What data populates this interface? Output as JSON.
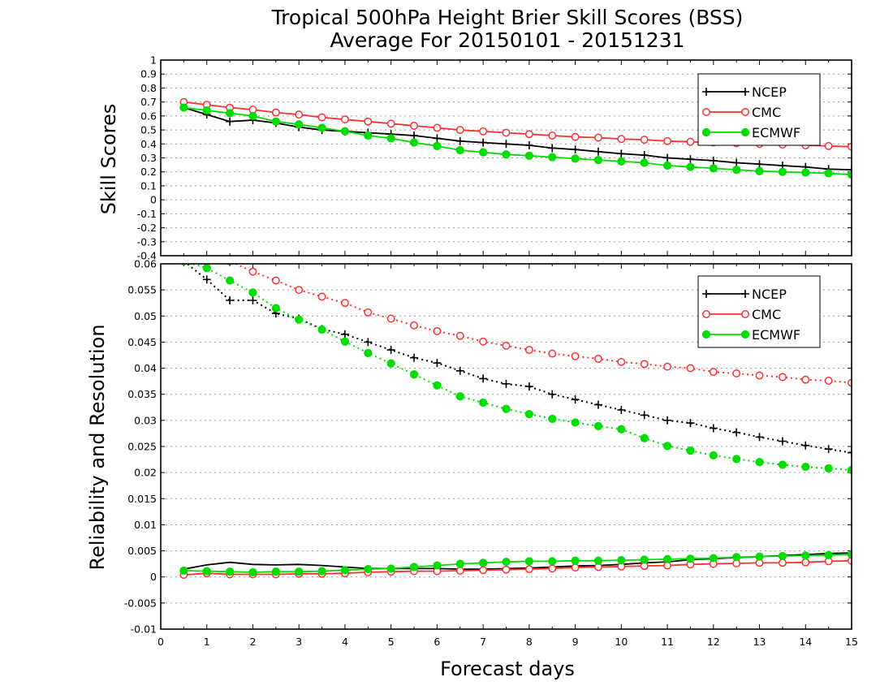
{
  "page": {
    "title_line1": "Tropical 500hPa Height Brier Skill Scores (BSS)",
    "title_line2": "Average For 20150101 - 20151231",
    "xlabel": "Forecast days"
  },
  "colors": {
    "NCEP": "#000000",
    "CMC": "#ff3030",
    "ECMWF": "#00dd00",
    "grid": "#9a9a9a"
  },
  "chart_data": [
    {
      "type": "line",
      "ylabel": "Skill Scores",
      "xlim": [
        0,
        15
      ],
      "ylim": [
        -0.4,
        1
      ],
      "x_ticks": [
        0,
        1,
        2,
        3,
        4,
        5,
        6,
        7,
        8,
        9,
        10,
        11,
        12,
        13,
        14,
        15
      ],
      "y_ticks": [
        -0.4,
        -0.3,
        -0.2,
        -0.1,
        0,
        0.1,
        0.2,
        0.3,
        0.4,
        0.5,
        0.6,
        0.7,
        0.8,
        0.9,
        1
      ],
      "y_tick_labels": [
        "-0.4",
        "-0.3",
        "-0.2",
        "-0.1",
        "0",
        "0.1",
        "0.2",
        "0.3",
        "0.4",
        "0.5",
        "0.6",
        "0.7",
        "0.8",
        "0.9",
        "1"
      ],
      "grid": "horizontal dotted",
      "legend_position": "top-right",
      "x": [
        0.5,
        1,
        1.5,
        2,
        2.5,
        3,
        3.5,
        4,
        4.5,
        5,
        5.5,
        6,
        6.5,
        7,
        7.5,
        8,
        8.5,
        9,
        9.5,
        10,
        10.5,
        11,
        11.5,
        12,
        12.5,
        13,
        13.5,
        14,
        14.5,
        15
      ],
      "series": [
        {
          "name": "NCEP",
          "marker": "plus",
          "line": "solid",
          "values": [
            0.66,
            0.61,
            0.56,
            0.57,
            0.55,
            0.52,
            0.5,
            0.49,
            0.48,
            0.47,
            0.46,
            0.44,
            0.42,
            0.41,
            0.4,
            0.39,
            0.37,
            0.36,
            0.345,
            0.33,
            0.32,
            0.3,
            0.29,
            0.28,
            0.265,
            0.255,
            0.245,
            0.235,
            0.22,
            0.215
          ]
        },
        {
          "name": "CMC",
          "marker": "open-circle",
          "line": "solid",
          "values": [
            0.7,
            0.68,
            0.66,
            0.645,
            0.625,
            0.61,
            0.59,
            0.575,
            0.56,
            0.545,
            0.53,
            0.515,
            0.5,
            0.49,
            0.48,
            0.47,
            0.46,
            0.45,
            0.445,
            0.435,
            0.43,
            0.42,
            0.415,
            0.41,
            0.405,
            0.4,
            0.395,
            0.39,
            0.385,
            0.38
          ]
        },
        {
          "name": "ECMWF",
          "marker": "filled-circle",
          "line": "solid",
          "values": [
            0.66,
            0.64,
            0.62,
            0.6,
            0.56,
            0.54,
            0.515,
            0.49,
            0.46,
            0.44,
            0.41,
            0.385,
            0.355,
            0.34,
            0.325,
            0.315,
            0.305,
            0.295,
            0.285,
            0.275,
            0.265,
            0.245,
            0.235,
            0.225,
            0.215,
            0.205,
            0.2,
            0.195,
            0.19,
            0.18
          ]
        }
      ]
    },
    {
      "type": "line",
      "ylabel": "Reliability and Resolution",
      "xlim": [
        0,
        15
      ],
      "ylim": [
        -0.01,
        0.06
      ],
      "x_ticks": [
        0,
        1,
        2,
        3,
        4,
        5,
        6,
        7,
        8,
        9,
        10,
        11,
        12,
        13,
        14,
        15
      ],
      "y_ticks": [
        -0.01,
        -0.005,
        0,
        0.005,
        0.01,
        0.015,
        0.02,
        0.025,
        0.03,
        0.035,
        0.04,
        0.045,
        0.05,
        0.055,
        0.06
      ],
      "y_tick_labels": [
        "-0.01",
        "-0.005",
        "0",
        "0.005",
        "0.01",
        "0.015",
        "0.02",
        "0.025",
        "0.03",
        "0.035",
        "0.04",
        "0.045",
        "0.05",
        "0.055",
        "0.06"
      ],
      "grid": "horizontal dotted",
      "legend_position": "top-right",
      "x": [
        0.5,
        1,
        1.5,
        2,
        2.5,
        3,
        3.5,
        4,
        4.5,
        5,
        5.5,
        6,
        6.5,
        7,
        7.5,
        8,
        8.5,
        9,
        9.5,
        10,
        10.5,
        11,
        11.5,
        12,
        12.5,
        13,
        13.5,
        14,
        14.5,
        15
      ],
      "series": [
        {
          "name": "NCEP",
          "marker": "plus",
          "line": "dotted",
          "group": "resolution",
          "values": [
            0.0605,
            0.057,
            0.053,
            0.053,
            0.0505,
            0.0495,
            0.0475,
            0.0465,
            0.045,
            0.0435,
            0.042,
            0.041,
            0.0395,
            0.038,
            0.037,
            0.0365,
            0.035,
            0.034,
            0.033,
            0.032,
            0.031,
            0.03,
            0.0295,
            0.0285,
            0.0277,
            0.0268,
            0.026,
            0.0252,
            0.0245,
            0.0238
          ]
        },
        {
          "name": "CMC",
          "marker": "open-circle",
          "line": "dotted",
          "group": "resolution",
          "values": [
            0.0625,
            0.0615,
            0.0605,
            0.0585,
            0.0568,
            0.055,
            0.0537,
            0.0525,
            0.0507,
            0.0495,
            0.0482,
            0.0471,
            0.0462,
            0.0451,
            0.0443,
            0.0435,
            0.0428,
            0.0423,
            0.0418,
            0.0412,
            0.0408,
            0.0403,
            0.04,
            0.0393,
            0.039,
            0.0386,
            0.0383,
            0.0378,
            0.0376,
            0.0372
          ]
        },
        {
          "name": "ECMWF",
          "marker": "filled-circle",
          "line": "dotted",
          "group": "resolution",
          "values": [
            0.0605,
            0.0592,
            0.0568,
            0.0545,
            0.0515,
            0.0493,
            0.0474,
            0.0451,
            0.0429,
            0.0409,
            0.0388,
            0.0367,
            0.0346,
            0.0334,
            0.0322,
            0.0312,
            0.0303,
            0.0296,
            0.0289,
            0.0283,
            0.0266,
            0.0251,
            0.0242,
            0.0233,
            0.0226,
            0.022,
            0.0215,
            0.0211,
            0.0208,
            0.0205
          ]
        },
        {
          "name": "NCEP",
          "marker": "none",
          "line": "solid",
          "group": "reliability",
          "values": [
            0.0015,
            0.0023,
            0.0028,
            0.0024,
            0.0023,
            0.0024,
            0.0022,
            0.0019,
            0.0016,
            0.0016,
            0.0016,
            0.0016,
            0.0015,
            0.0015,
            0.0016,
            0.0017,
            0.0019,
            0.0021,
            0.0022,
            0.0024,
            0.0027,
            0.0029,
            0.0033,
            0.0035,
            0.0037,
            0.0039,
            0.0041,
            0.0043,
            0.0045,
            0.0046
          ]
        },
        {
          "name": "CMC",
          "marker": "open-circle",
          "line": "solid",
          "group": "reliability",
          "values": [
            0.0004,
            0.0007,
            0.0005,
            0.0005,
            0.0005,
            0.0006,
            0.0006,
            0.0007,
            0.0009,
            0.001,
            0.0011,
            0.0011,
            0.0012,
            0.0013,
            0.0014,
            0.0015,
            0.0016,
            0.0018,
            0.0019,
            0.002,
            0.0021,
            0.0022,
            0.0024,
            0.0025,
            0.0026,
            0.0027,
            0.0027,
            0.0028,
            0.003,
            0.0031
          ]
        },
        {
          "name": "ECMWF",
          "marker": "filled-circle",
          "line": "solid",
          "group": "reliability",
          "values": [
            0.0012,
            0.0011,
            0.001,
            0.0009,
            0.001,
            0.001,
            0.0011,
            0.0013,
            0.0015,
            0.0016,
            0.0019,
            0.0022,
            0.0025,
            0.0027,
            0.0029,
            0.003,
            0.003,
            0.0031,
            0.0031,
            0.0032,
            0.0033,
            0.0034,
            0.0035,
            0.0036,
            0.0038,
            0.0039,
            0.004,
            0.0041,
            0.0042,
            0.0043
          ]
        }
      ]
    }
  ]
}
